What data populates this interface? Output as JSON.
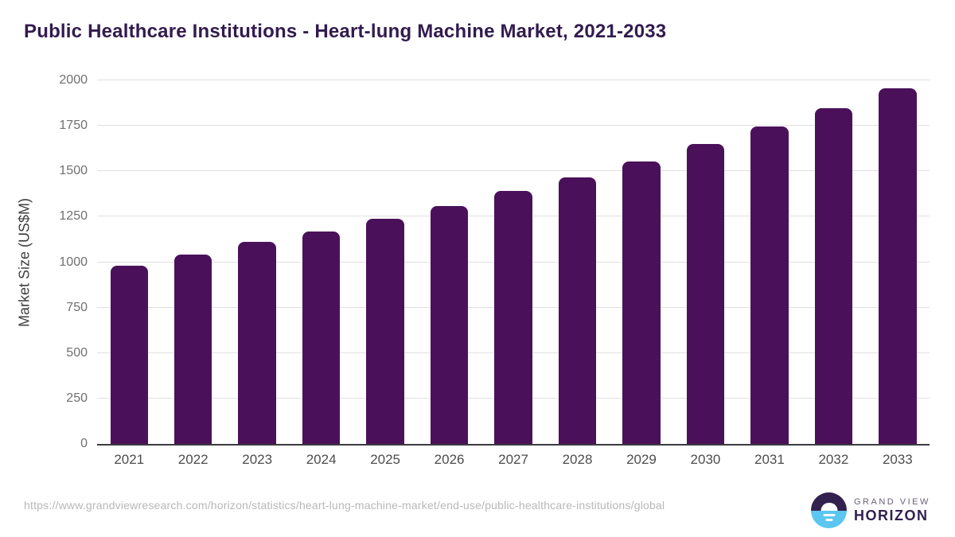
{
  "colors": {
    "bar": "#4A115A",
    "title": "#321B4F",
    "logo_purple": "#32204E",
    "logo_blue": "#5BC6F0",
    "gridline": "#e0e0e0",
    "axis_line": "#3a3a40"
  },
  "chart_data": {
    "type": "bar",
    "title": "Public Healthcare Institutions - Heart-lung Machine Market, 2021-2033",
    "categories": [
      "2021",
      "2022",
      "2023",
      "2024",
      "2025",
      "2026",
      "2027",
      "2028",
      "2029",
      "2030",
      "2031",
      "2032",
      "2033"
    ],
    "values": [
      980,
      1040,
      1110,
      1170,
      1240,
      1310,
      1390,
      1465,
      1555,
      1650,
      1745,
      1845,
      1955
    ],
    "xlabel": "",
    "ylabel": "Market Size (US$M)",
    "ylim": [
      0,
      2000
    ],
    "yticks": [
      0,
      250,
      500,
      750,
      1000,
      1250,
      1500,
      1750,
      2000
    ],
    "grid": "horizontal",
    "legend": "none"
  },
  "footer": {
    "source_url": "https://www.grandviewresearch.com/horizon/statistics/heart-lung-machine-market/end-use/public-healthcare-institutions/global",
    "logo": {
      "line1": "GRAND VIEW",
      "line2": "HORIZON"
    }
  }
}
